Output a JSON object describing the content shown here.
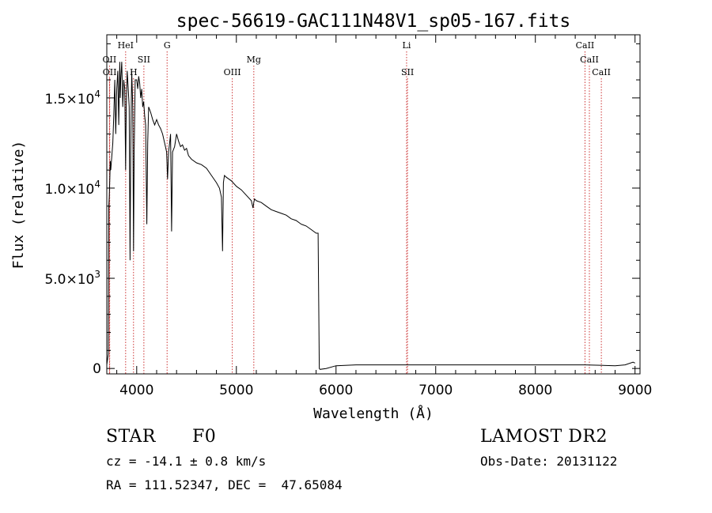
{
  "chart_data": {
    "type": "line",
    "title": "spec-56619-GAC111N48V1_sp05-167.fits",
    "xlabel": "Wavelength (Å)",
    "ylabel": "Flux (relative)",
    "xlim": [
      3700,
      9050
    ],
    "ylim": [
      -300,
      18500
    ],
    "xticks": [
      {
        "value": 4000,
        "label": "4000"
      },
      {
        "value": 5000,
        "label": "5000"
      },
      {
        "value": 6000,
        "label": "6000"
      },
      {
        "value": 7000,
        "label": "7000"
      },
      {
        "value": 8000,
        "label": "8000"
      },
      {
        "value": 9000,
        "label": "9000"
      }
    ],
    "yticks": [
      {
        "value": 0,
        "label": "0"
      },
      {
        "value": 5000,
        "mant": "5.0",
        "exp": "3"
      },
      {
        "value": 10000,
        "mant": "1.0",
        "exp": "4"
      },
      {
        "value": 15000,
        "mant": "1.5",
        "exp": "4"
      }
    ],
    "series": [
      {
        "name": "spectrum",
        "x": [
          3700,
          3715,
          3720,
          3725,
          3730,
          3735,
          3740,
          3760,
          3770,
          3780,
          3790,
          3800,
          3810,
          3820,
          3830,
          3835,
          3840,
          3850,
          3860,
          3870,
          3880,
          3889,
          3895,
          3905,
          3915,
          3925,
          3933,
          3940,
          3950,
          3960,
          3968,
          3975,
          3985,
          4000,
          4010,
          4020,
          4030,
          4040,
          4050,
          4060,
          4070,
          4080,
          4090,
          4102,
          4110,
          4120,
          4140,
          4160,
          4180,
          4200,
          4220,
          4240,
          4260,
          4280,
          4300,
          4310,
          4320,
          4330,
          4340,
          4350,
          4360,
          4380,
          4400,
          4420,
          4440,
          4460,
          4480,
          4500,
          4520,
          4550,
          4600,
          4650,
          4700,
          4750,
          4800,
          4830,
          4850,
          4861,
          4870,
          4880,
          4900,
          4950,
          5000,
          5050,
          5100,
          5150,
          5167,
          5175,
          5183,
          5200,
          5250,
          5300,
          5350,
          5400,
          5450,
          5500,
          5550,
          5600,
          5650,
          5700,
          5750,
          5800,
          5820,
          5830,
          5832,
          5840,
          5900,
          6000,
          6200,
          6500,
          6800,
          7000,
          7500,
          8000,
          8500,
          8800,
          8900,
          8980,
          9000
        ],
        "y": [
          200,
          800,
          9000,
          9500,
          10500,
          11500,
          11000,
          12500,
          14000,
          16000,
          13000,
          15500,
          16500,
          13500,
          17000,
          15000,
          16000,
          17000,
          14500,
          16000,
          15500,
          11000,
          14500,
          16500,
          15500,
          14500,
          6000,
          12000,
          16500,
          14500,
          6500,
          12000,
          16000,
          16000,
          15500,
          16200,
          15800,
          15000,
          15500,
          14500,
          14800,
          14000,
          13500,
          8000,
          12500,
          14500,
          14200,
          13800,
          13500,
          13800,
          13500,
          13300,
          13000,
          12500,
          12000,
          10500,
          12000,
          12500,
          13000,
          7600,
          12000,
          12300,
          13000,
          12600,
          12300,
          12400,
          12100,
          12200,
          11800,
          11600,
          11400,
          11300,
          11100,
          10700,
          10300,
          10000,
          9500,
          6500,
          10300,
          10700,
          10600,
          10400,
          10100,
          9900,
          9600,
          9300,
          8900,
          9200,
          9400,
          9300,
          9200,
          9000,
          8800,
          8700,
          8600,
          8500,
          8300,
          8200,
          8000,
          7900,
          7700,
          7500,
          7500,
          1500,
          0,
          -50,
          0,
          150,
          200,
          200,
          200,
          200,
          200,
          200,
          200,
          150,
          200,
          350,
          300
        ]
      }
    ],
    "lines": [
      {
        "name": "OII",
        "wave": 3727,
        "row": 2
      },
      {
        "name": "OII",
        "wave": 3729,
        "row": 3
      },
      {
        "name": "HeI",
        "wave": 3889,
        "row": 1
      },
      {
        "name": "H",
        "wave": 3968,
        "row": 3
      },
      {
        "name": "SII",
        "wave": 4072,
        "row": 2
      },
      {
        "name": "G",
        "wave": 4305,
        "row": 1
      },
      {
        "name": "OIII",
        "wave": 4959,
        "row": 3
      },
      {
        "name": "Mg",
        "wave": 5175,
        "row": 2
      },
      {
        "name": "Li",
        "wave": 6708,
        "row": 1
      },
      {
        "name": "SII",
        "wave": 6717,
        "row": 3
      },
      {
        "name": "CaII",
        "wave": 8498,
        "row": 1
      },
      {
        "name": "CaII",
        "wave": 8542,
        "row": 2
      },
      {
        "name": "CaII",
        "wave": 8662,
        "row": 3
      }
    ],
    "line_color": "#cc3333"
  },
  "info": {
    "class": "STAR",
    "subclass": "F0",
    "survey": "LAMOST DR2",
    "cz": "cz = -14.1 ± 0.8 km/s",
    "obs_date": "Obs-Date: 20131122",
    "coords": "RA = 111.52347, DEC =  47.65084"
  }
}
